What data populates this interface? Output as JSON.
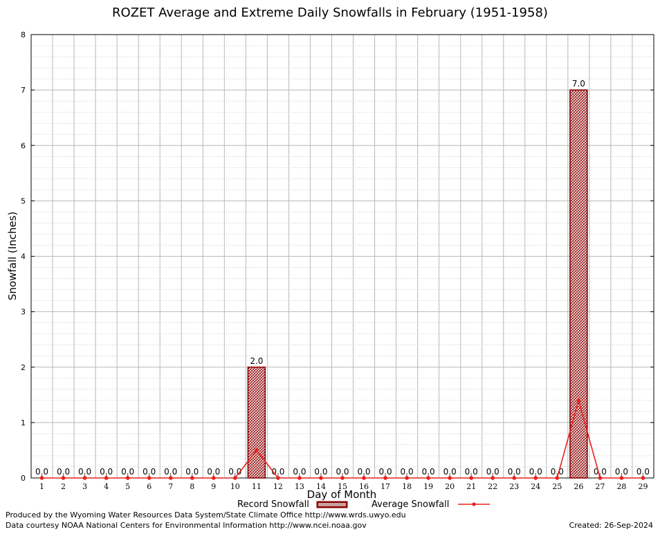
{
  "chart_data": {
    "type": "bar",
    "title": "ROZET Average and Extreme Daily Snowfalls in February (1951-1958)",
    "xlabel": "Day of Month",
    "ylabel": "Snowfall (Inches)",
    "ylim": [
      0,
      8
    ],
    "yticks": [
      0,
      1,
      2,
      3,
      4,
      5,
      6,
      7,
      8
    ],
    "grid": true,
    "categories": [
      "1",
      "2",
      "3",
      "4",
      "5",
      "6",
      "7",
      "8",
      "9",
      "10",
      "11",
      "12",
      "13",
      "14",
      "15",
      "16",
      "17",
      "18",
      "19",
      "20",
      "21",
      "22",
      "23",
      "24",
      "25",
      "26",
      "27",
      "28",
      "29"
    ],
    "series": [
      {
        "name": "Record Snowfall",
        "kind": "bar",
        "color": "#8b0000",
        "values": [
          0,
          0,
          0,
          0,
          0,
          0,
          0,
          0,
          0,
          0,
          2.0,
          0,
          0,
          0,
          0,
          0,
          0,
          0,
          0,
          0,
          0,
          0,
          0,
          0,
          0,
          7.0,
          0,
          0,
          0
        ],
        "labels": [
          "0.0",
          "0.0",
          "0.0",
          "0.0",
          "0.0",
          "0.0",
          "0.0",
          "0.0",
          "0.0",
          "0.0",
          "2.0",
          "0.0",
          "0.0",
          "0.0",
          "0.0",
          "0.0",
          "0.0",
          "0.0",
          "0.0",
          "0.0",
          "0.0",
          "0.0",
          "0.0",
          "0.0",
          "0.0",
          "7.0",
          "0.0",
          "0.0",
          "0.0"
        ]
      },
      {
        "name": "Average Snowfall",
        "kind": "line",
        "color": "#e8201c",
        "values": [
          0,
          0,
          0,
          0,
          0,
          0,
          0,
          0,
          0,
          0,
          0.5,
          0,
          0,
          0,
          0,
          0,
          0,
          0,
          0,
          0,
          0,
          0,
          0,
          0,
          0,
          1.4,
          0,
          0,
          0
        ]
      }
    ],
    "legend_position": "bottom"
  },
  "footer": {
    "produced_by": "Produced by the Wyoming Water Resources Data System/State Climate Office http://www.wrds.uwyo.edu",
    "data_courtesy": "Data courtesy NOAA National Centers for Environmental Information http://www.ncei.noaa.gov",
    "created": "Created:  26-Sep-2024"
  }
}
